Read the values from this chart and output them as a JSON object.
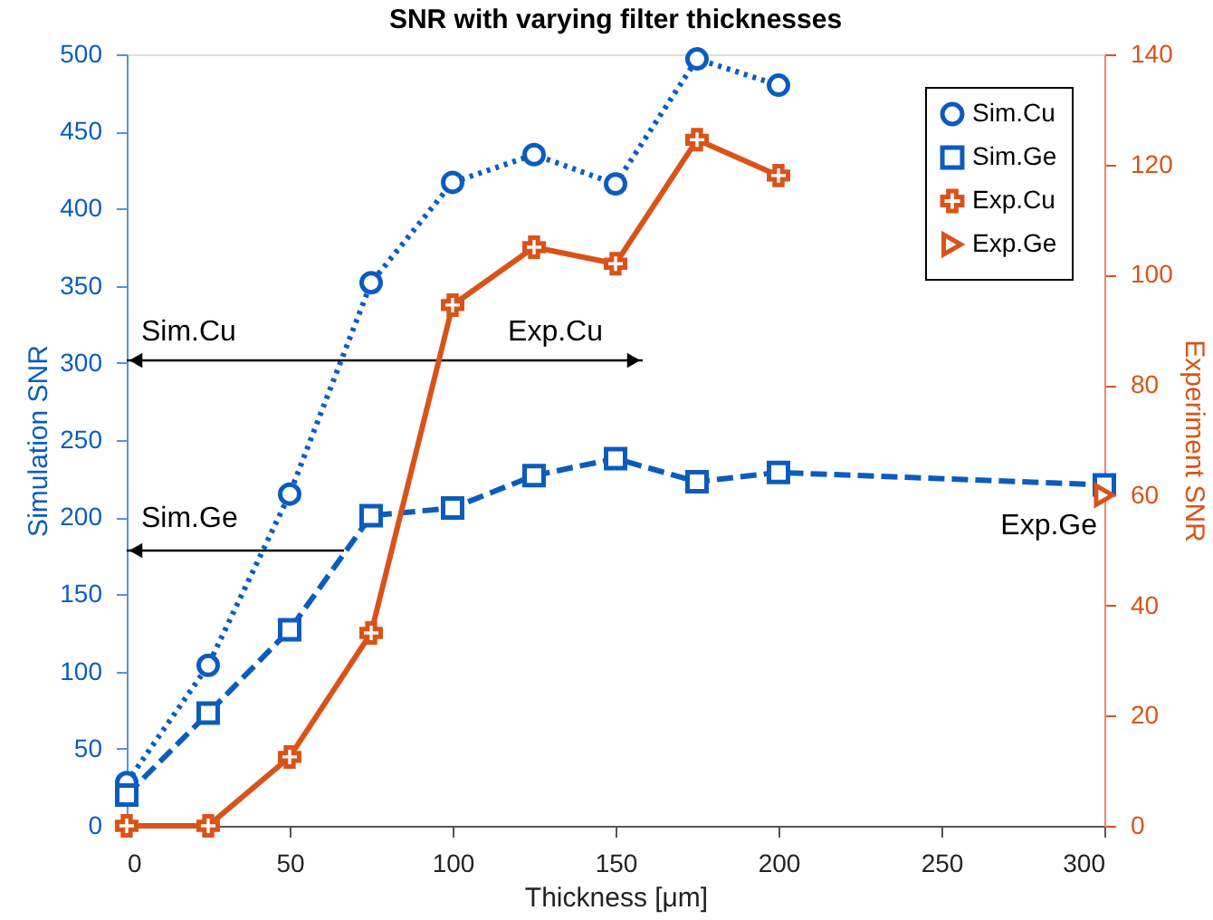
{
  "chart_data": {
    "type": "line",
    "title": "SNR with varying filter thicknesses",
    "xlabel": "Thickness [μm]",
    "ylabel": "Simulation SNR",
    "y2label": "Experiment SNR",
    "x": [
      0,
      25,
      50,
      75,
      100,
      125,
      150,
      175,
      200
    ],
    "series": [
      {
        "name": "Sim.Cu",
        "color": "#0b5cbd",
        "line_style": "dotted",
        "marker": "circle",
        "values": [
          28,
          104,
          215,
          352,
          417,
          435,
          416,
          497,
          480
        ]
      },
      {
        "name": "Sim.Ge",
        "color": "#0b5cbd",
        "line_style": "dashed",
        "marker": "square",
        "x": [
          0,
          25,
          50,
          75,
          100,
          125,
          150,
          175,
          200,
          300
        ],
        "values": [
          20,
          73,
          127,
          201,
          206,
          227,
          238,
          223,
          229,
          221
        ]
      },
      {
        "name": "Exp.Cu",
        "color": "#d95319",
        "line_style": "solid",
        "marker": "cross",
        "axis": "y2",
        "values": [
          0,
          0,
          12.5,
          35,
          94.5,
          105,
          102,
          124.5,
          118
        ]
      },
      {
        "name": "Exp.Ge",
        "type": "scatter",
        "color": "#d95319",
        "marker": "triangle",
        "axis": "y2",
        "x": [
          300
        ],
        "values": [
          60
        ]
      }
    ],
    "xlim": [
      0,
      300
    ],
    "xticks": [
      0,
      50,
      100,
      150,
      200,
      250,
      300
    ],
    "ylim": [
      0,
      500
    ],
    "yticks": [
      0,
      50,
      100,
      150,
      200,
      250,
      300,
      350,
      400,
      450,
      500
    ],
    "y2lim": [
      0,
      140
    ],
    "y2ticks": [
      0,
      20,
      40,
      60,
      80,
      100,
      120,
      140
    ],
    "annotations": [
      "Sim.Cu",
      "Exp.Cu",
      "Sim.Ge",
      "Exp.Ge"
    ],
    "grid": false,
    "legend": "top right"
  }
}
